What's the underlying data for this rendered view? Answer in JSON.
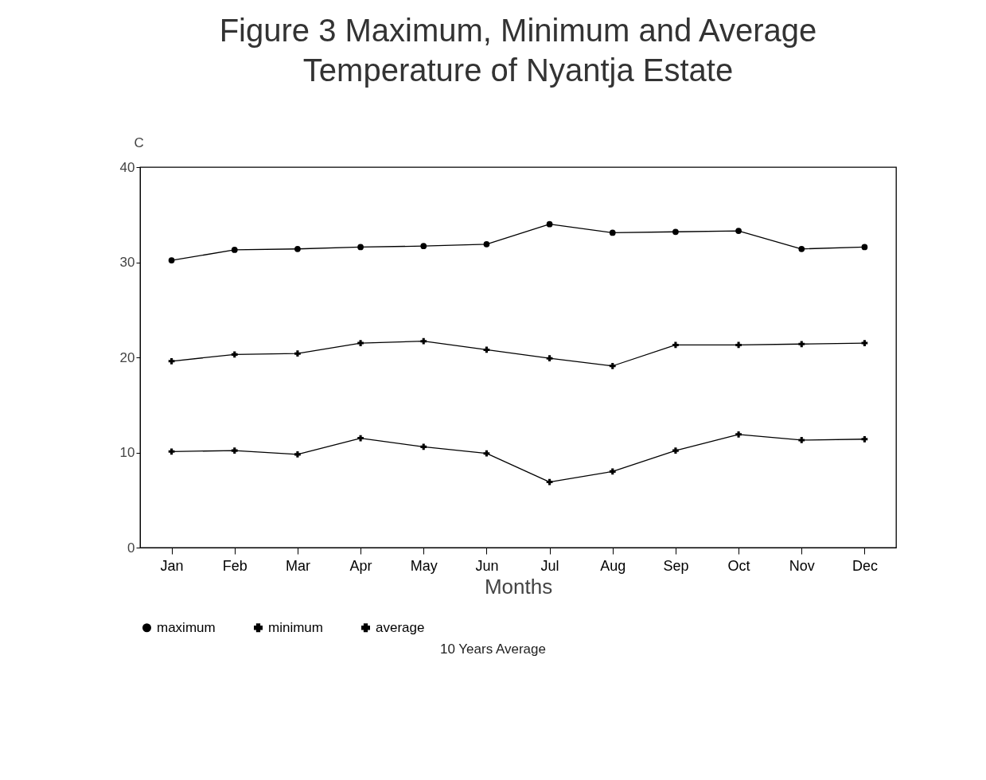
{
  "chart_data": {
    "type": "line",
    "title": "Figure 3 Maximum, Minimum and Average Temperature of Nyantja Estate",
    "xlabel": "Months",
    "ylabel": "C",
    "categories": [
      "Jan",
      "Feb",
      "Mar",
      "Apr",
      "May",
      "Jun",
      "Jul",
      "Aug",
      "Sep",
      "Oct",
      "Nov",
      "Dec"
    ],
    "series": [
      {
        "name": "maximum",
        "color": "#000000",
        "marker": "circle",
        "values": [
          30.2,
          31.3,
          31.4,
          31.6,
          31.7,
          31.9,
          34.0,
          33.1,
          33.2,
          33.3,
          31.4,
          31.6
        ]
      },
      {
        "name": "minimum",
        "color": "#000000",
        "marker": "cross",
        "values": [
          10.1,
          10.2,
          9.8,
          11.5,
          10.6,
          9.9,
          6.9,
          8.0,
          10.2,
          11.9,
          11.3,
          11.4
        ]
      },
      {
        "name": "average",
        "color": "#000000",
        "marker": "cross",
        "values": [
          19.6,
          20.3,
          20.4,
          21.5,
          21.7,
          20.8,
          19.9,
          19.1,
          21.3,
          21.3,
          21.4,
          21.5
        ]
      }
    ],
    "ylim": [
      0,
      40
    ],
    "yticks": [
      0,
      10,
      20,
      30,
      40
    ],
    "grid": false,
    "legend": "bottom",
    "annotations": [
      "10 Years Average"
    ]
  }
}
